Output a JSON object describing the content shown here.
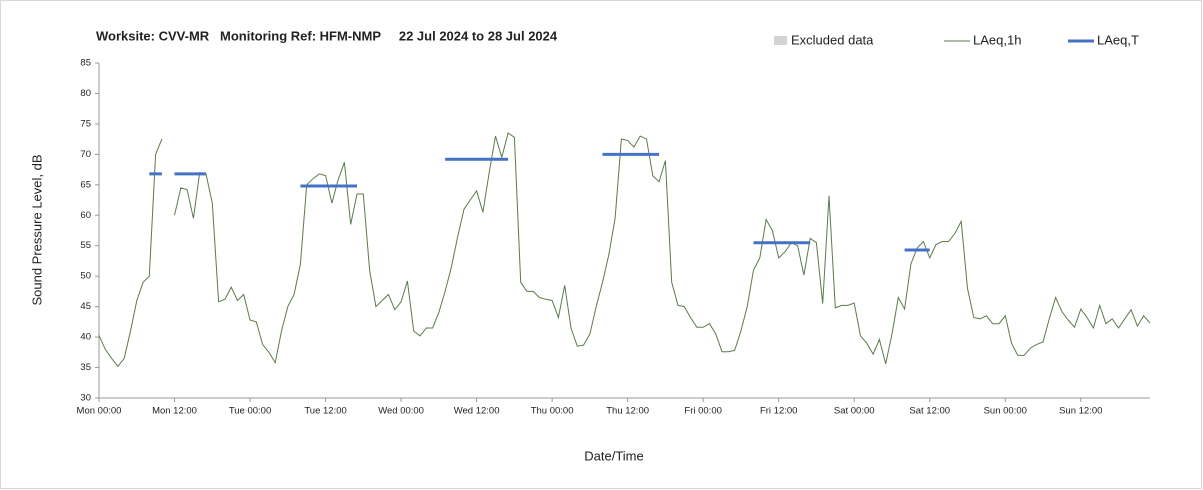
{
  "chart_data": {
    "type": "line",
    "title": "Worksite: CVV-MR   Monitoring Ref: HFM-NMP     22 Jul 2024 to 28 Jul 2024",
    "x_label": "Date/Time",
    "y_label": "Sound Pressure Level, dB",
    "excluded_data": {
      "name": "Excluded data",
      "color": "#d3d3d3"
    },
    "categories": [
      "Mon 00:00",
      null,
      null,
      null,
      null,
      null,
      null,
      null,
      null,
      null,
      null,
      null,
      "Mon 12:00",
      null,
      null,
      null,
      null,
      null,
      null,
      null,
      null,
      null,
      null,
      null,
      "Tue 00:00",
      null,
      null,
      null,
      null,
      null,
      null,
      null,
      null,
      null,
      null,
      null,
      "Tue 12:00",
      null,
      null,
      null,
      null,
      null,
      null,
      null,
      null,
      null,
      null,
      null,
      "Wed 00:00",
      null,
      null,
      null,
      null,
      null,
      null,
      null,
      null,
      null,
      null,
      null,
      "Wed 12:00",
      null,
      null,
      null,
      null,
      null,
      null,
      null,
      null,
      null,
      null,
      null,
      "Thu 00:00",
      null,
      null,
      null,
      null,
      null,
      null,
      null,
      null,
      null,
      null,
      null,
      "Thu 12:00",
      null,
      null,
      null,
      null,
      null,
      null,
      null,
      null,
      null,
      null,
      null,
      "Fri 00:00",
      null,
      null,
      null,
      null,
      null,
      null,
      null,
      null,
      null,
      null,
      null,
      "Fri 12:00",
      null,
      null,
      null,
      null,
      null,
      null,
      null,
      null,
      null,
      null,
      null,
      "Sat 00:00",
      null,
      null,
      null,
      null,
      null,
      null,
      null,
      null,
      null,
      null,
      null,
      "Sat 12:00",
      null,
      null,
      null,
      null,
      null,
      null,
      null,
      null,
      null,
      null,
      null,
      "Sun 00:00",
      null,
      null,
      null,
      null,
      null,
      null,
      null,
      null,
      null,
      null,
      null,
      "Sun 12:00",
      null,
      null,
      null,
      null,
      null,
      null,
      null,
      null,
      null,
      null,
      null
    ],
    "series": [
      {
        "name": "LAeq,1h",
        "color": "#5b7b4b",
        "width": 1,
        "values": [
          40.3,
          38,
          36.5,
          35.2,
          36.5,
          41,
          46,
          49,
          50,
          70,
          72.5,
          null,
          60,
          64.5,
          64.2,
          59.5,
          67,
          66.8,
          62,
          45.8,
          46.2,
          48.2,
          46,
          47,
          42.8,
          42.5,
          38.8,
          37.5,
          35.8,
          41,
          45,
          47,
          52,
          65,
          66,
          66.8,
          66.5,
          62,
          65.8,
          68.7,
          58.5,
          63.5,
          63.5,
          51,
          45,
          46,
          47,
          44.5,
          45.8,
          49.2,
          41,
          40.2,
          41.5,
          41.5,
          44,
          47.5,
          51.5,
          56.5,
          61,
          62.5,
          64,
          60.5,
          67,
          73,
          69.5,
          73.5,
          72.8,
          49,
          47.5,
          47.5,
          46.5,
          46.2,
          46,
          43.2,
          48.5,
          41.5,
          38.5,
          38.7,
          40.5,
          45,
          49,
          53.5,
          59.5,
          72.5,
          72.3,
          71.2,
          73,
          72.5,
          66.5,
          65.5,
          69,
          49,
          45.2,
          45,
          43.2,
          41.6,
          41.6,
          42.2,
          40.5,
          37.6,
          37.6,
          37.8,
          41,
          45,
          51,
          53,
          59.3,
          57.5,
          53,
          54,
          55.5,
          55,
          50.2,
          56.2,
          55.5,
          45.5,
          63.2,
          44.8,
          45.2,
          45.2,
          45.6,
          40.2,
          39,
          37.2,
          39.6,
          35.6,
          40.5,
          46.5,
          44.6,
          52,
          54.6,
          55.7,
          53,
          55.2,
          55.7,
          55.7,
          57,
          59,
          48,
          43.2,
          43,
          43.5,
          42.2,
          42.2,
          43.5,
          39,
          37,
          37,
          38.2,
          38.8,
          39.2,
          43,
          46.5,
          44.2,
          42.8,
          41.6,
          44.6,
          43.2,
          41.5,
          45.2,
          42.2,
          43,
          41.5,
          43,
          44.5,
          41.8,
          43.5,
          42.3
        ]
      },
      {
        "name": "LAeq,T",
        "color": "#4472c4",
        "width": 3,
        "values": [
          null,
          null,
          null,
          null,
          null,
          null,
          null,
          null,
          66.8,
          66.8,
          66.8,
          null,
          66.8,
          66.8,
          66.8,
          66.8,
          66.8,
          66.8,
          null,
          null,
          null,
          null,
          null,
          null,
          null,
          null,
          null,
          null,
          null,
          null,
          null,
          null,
          64.8,
          64.8,
          64.8,
          64.8,
          64.8,
          64.8,
          64.8,
          64.8,
          64.8,
          64.8,
          null,
          null,
          null,
          null,
          null,
          null,
          null,
          null,
          null,
          null,
          null,
          null,
          null,
          69.2,
          69.2,
          69.2,
          69.2,
          69.2,
          69.2,
          69.2,
          69.2,
          69.2,
          69.2,
          69.2,
          null,
          null,
          null,
          null,
          null,
          null,
          null,
          null,
          null,
          null,
          null,
          null,
          null,
          null,
          70,
          70,
          70,
          70,
          70,
          70,
          70,
          70,
          70,
          70,
          null,
          null,
          null,
          null,
          null,
          null,
          null,
          null,
          null,
          null,
          null,
          null,
          null,
          null,
          55.5,
          55.5,
          55.5,
          55.5,
          55.5,
          55.5,
          55.5,
          55.5,
          55.5,
          55.5,
          null,
          null,
          null,
          null,
          null,
          null,
          null,
          null,
          null,
          null,
          null,
          null,
          null,
          null,
          54.3,
          54.3,
          54.3,
          54.3,
          54.3,
          null,
          null,
          null,
          null,
          null,
          null,
          null,
          null,
          null,
          null,
          null,
          null,
          null,
          null,
          null,
          null,
          null,
          null,
          null,
          null,
          null,
          null,
          null,
          null,
          null,
          null,
          null,
          null,
          null,
          null,
          null,
          null,
          null,
          null,
          null
        ]
      }
    ],
    "ylim": [
      30,
      85
    ],
    "yticks": [
      30,
      35,
      40,
      45,
      50,
      55,
      60,
      65,
      70,
      75,
      80,
      85
    ],
    "grid": false
  }
}
